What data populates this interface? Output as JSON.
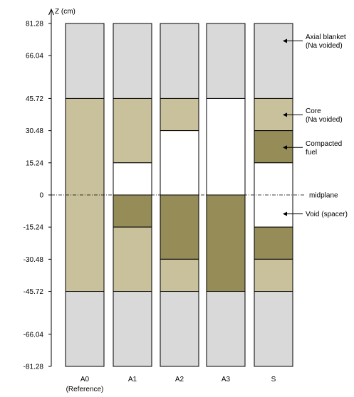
{
  "axis": {
    "label": "Z (cm)",
    "ticks": [
      81.28,
      66.04,
      45.72,
      30.48,
      15.24,
      0,
      -15.24,
      -30.48,
      -45.72,
      -66.04,
      -81.28
    ],
    "tick_labels": [
      "81.28",
      "66.04",
      "45.72",
      "30.48",
      "15.24",
      "0",
      "-15.24",
      "-30.48",
      "-45.72",
      "-66.04",
      "-81.28"
    ]
  },
  "colors": {
    "blanket": "#d9d9d9",
    "core": "#c9c19b",
    "compacted": "#958c57",
    "void": "#ffffff",
    "border": "#000000"
  },
  "columns": [
    {
      "label": "A0",
      "sublabel": "(Reference)",
      "segments": [
        {
          "from": 45.72,
          "to": 81.28,
          "material": "blanket"
        },
        {
          "from": -45.72,
          "to": 45.72,
          "material": "core"
        },
        {
          "from": -81.28,
          "to": -45.72,
          "material": "blanket"
        }
      ]
    },
    {
      "label": "A1",
      "sublabel": "",
      "segments": [
        {
          "from": 45.72,
          "to": 81.28,
          "material": "blanket"
        },
        {
          "from": 15.24,
          "to": 45.72,
          "material": "core"
        },
        {
          "from": 0,
          "to": 15.24,
          "material": "void"
        },
        {
          "from": -15.24,
          "to": 0,
          "material": "compacted"
        },
        {
          "from": -45.72,
          "to": -15.24,
          "material": "core"
        },
        {
          "from": -81.28,
          "to": -45.72,
          "material": "blanket"
        }
      ]
    },
    {
      "label": "A2",
      "sublabel": "",
      "segments": [
        {
          "from": 45.72,
          "to": 81.28,
          "material": "blanket"
        },
        {
          "from": 30.48,
          "to": 45.72,
          "material": "core"
        },
        {
          "from": 0,
          "to": 30.48,
          "material": "void"
        },
        {
          "from": -30.48,
          "to": 0,
          "material": "compacted"
        },
        {
          "from": -45.72,
          "to": -30.48,
          "material": "core"
        },
        {
          "from": -81.28,
          "to": -45.72,
          "material": "blanket"
        }
      ]
    },
    {
      "label": "A3",
      "sublabel": "",
      "segments": [
        {
          "from": 45.72,
          "to": 81.28,
          "material": "blanket"
        },
        {
          "from": 0,
          "to": 45.72,
          "material": "void"
        },
        {
          "from": -45.72,
          "to": 0,
          "material": "compacted"
        },
        {
          "from": -81.28,
          "to": -45.72,
          "material": "blanket"
        }
      ]
    },
    {
      "label": "S",
      "sublabel": "",
      "segments": [
        {
          "from": 45.72,
          "to": 81.28,
          "material": "blanket"
        },
        {
          "from": 30.48,
          "to": 45.72,
          "material": "core"
        },
        {
          "from": 15.24,
          "to": 30.48,
          "material": "compacted"
        },
        {
          "from": -15.24,
          "to": 15.24,
          "material": "void"
        },
        {
          "from": -30.48,
          "to": -15.24,
          "material": "compacted"
        },
        {
          "from": -45.72,
          "to": -30.48,
          "material": "core"
        },
        {
          "from": -81.28,
          "to": -45.72,
          "material": "blanket"
        }
      ]
    }
  ],
  "midplane_label": "midplane",
  "annotations": [
    {
      "lines": [
        "Axial blanket",
        "(Na voided)"
      ],
      "z": 73.0
    },
    {
      "lines": [
        "Core",
        "(Na voided)"
      ],
      "z": 38.0
    },
    {
      "lines": [
        "Compacted",
        "fuel"
      ],
      "z": 22.5
    },
    {
      "lines": [
        "Void (spacer)"
      ],
      "z": -9.0
    }
  ]
}
